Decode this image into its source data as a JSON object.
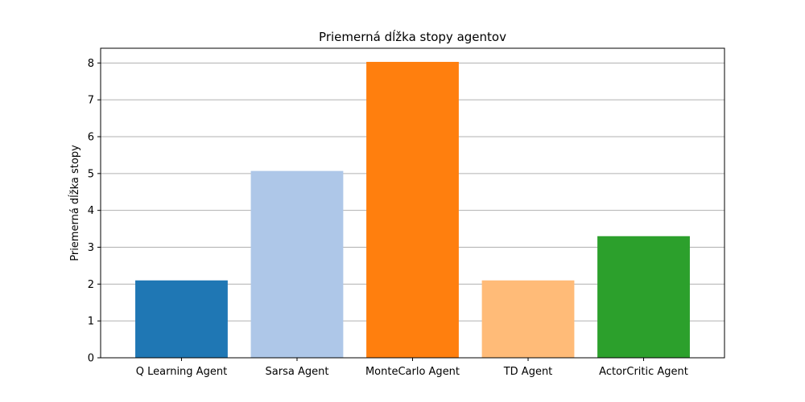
{
  "chart_data": {
    "type": "bar",
    "title": "Priemerná dĺžka stopy agentov",
    "xlabel": "",
    "ylabel": "Priemerná dĺžka stopy",
    "categories": [
      "Q Learning Agent",
      "Sarsa Agent",
      "MonteCarlo Agent",
      "TD Agent",
      "ActorCritic Agent"
    ],
    "values": [
      2.1,
      5.07,
      8.03,
      2.1,
      3.3
    ],
    "colors": [
      "#1f77b4",
      "#aec7e8",
      "#ff7f0e",
      "#ffbb78",
      "#2ca02c"
    ],
    "ylim": [
      0,
      8.4
    ],
    "yticks": [
      0,
      1,
      2,
      3,
      4,
      5,
      6,
      7,
      8
    ],
    "grid": "horizontal",
    "legend": "none"
  }
}
